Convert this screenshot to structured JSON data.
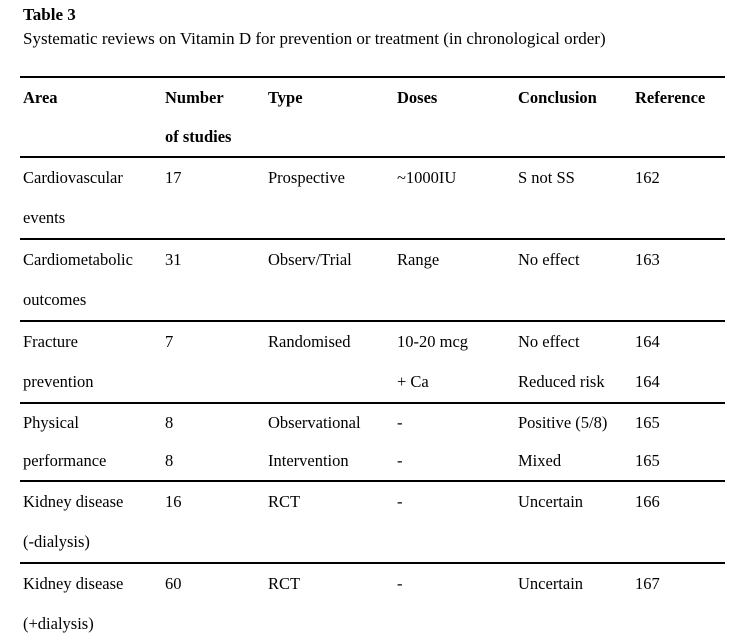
{
  "page": {
    "title": "Table 3",
    "caption": "Systematic reviews on Vitamin D for prevention or treatment (in chronological order)"
  },
  "table": {
    "header": {
      "line1": [
        "Area",
        "Number",
        "Type",
        "Doses",
        "Conclusion",
        "Reference"
      ],
      "line2": [
        "",
        "of studies",
        "",
        "",
        "",
        ""
      ]
    },
    "rows": [
      {
        "line1": {
          "area": "Cardiovascular",
          "number": "17",
          "type": "Prospective",
          "doses": "~1000IU",
          "conclusion": "S not SS",
          "reference": "162"
        },
        "line2": {
          "area": "events",
          "number": "",
          "type": "",
          "doses": "",
          "conclusion": "",
          "reference": ""
        }
      },
      {
        "line1": {
          "area": "Cardiometabolic",
          "number": "31",
          "type": "Observ/Trial",
          "doses": "Range",
          "conclusion": "No effect",
          "reference": "163"
        },
        "line2": {
          "area": "outcomes",
          "number": "",
          "type": "",
          "doses": "",
          "conclusion": "",
          "reference": ""
        }
      },
      {
        "line1": {
          "area": "Fracture",
          "number": "7",
          "type": "Randomised",
          "doses": "10-20 mcg",
          "conclusion": "No effect",
          "reference": "164"
        },
        "line2": {
          "area": "prevention",
          "number": "",
          "type": "",
          "doses": "+ Ca",
          "conclusion": "Reduced risk",
          "reference": "164"
        }
      },
      {
        "line1": {
          "area": "Physical",
          "number": "8",
          "type": "Observational",
          "doses": "-",
          "conclusion": "Positive (5/8)",
          "reference": "165"
        },
        "line2": {
          "area": "performance",
          "number": "8",
          "type": "Intervention",
          "doses": "-",
          "conclusion": "Mixed",
          "reference": "165"
        }
      },
      {
        "line1": {
          "area": "Kidney disease",
          "number": "16",
          "type": "RCT",
          "doses": "-",
          "conclusion": "Uncertain",
          "reference": "166"
        },
        "line2": {
          "area": "(-dialysis)",
          "number": "",
          "type": "",
          "doses": "",
          "conclusion": "",
          "reference": ""
        }
      },
      {
        "line1": {
          "area": "Kidney disease",
          "number": "60",
          "type": "RCT",
          "doses": "-",
          "conclusion": "Uncertain",
          "reference": "167"
        },
        "line2": {
          "area": "(+dialysis)",
          "number": "",
          "type": "",
          "doses": "",
          "conclusion": "",
          "reference": ""
        }
      }
    ]
  },
  "colors": {
    "text": "#000000",
    "background": "#ffffff",
    "rule": "#000000"
  }
}
